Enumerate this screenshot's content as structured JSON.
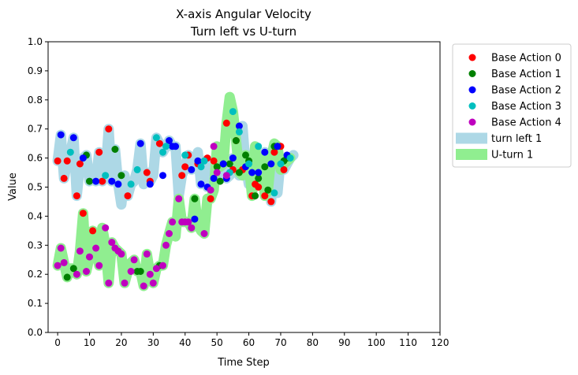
{
  "chart_data": {
    "type": "scatter",
    "title": "X-axis Angular Velocity",
    "subtitle": "Turn left vs U-turn",
    "xlabel": "Time Step",
    "ylabel": "Value",
    "xlim": [
      -3,
      120
    ],
    "ylim": [
      0,
      1.0
    ],
    "xticks": [
      0,
      10,
      20,
      30,
      40,
      50,
      60,
      70,
      80,
      90,
      100,
      110,
      120
    ],
    "yticks": [
      0.0,
      0.1,
      0.2,
      0.3,
      0.4,
      0.5,
      0.6,
      0.7,
      0.8,
      0.9,
      1.0
    ],
    "grid": false,
    "legend_position": "outside-top-right",
    "bands": [
      {
        "name": "turn left 1",
        "color": "#add8e6",
        "x": [
          0,
          1,
          2,
          3,
          4,
          5,
          6,
          7,
          8,
          9,
          10,
          11,
          12,
          13,
          14,
          15,
          16,
          17,
          18,
          19,
          20,
          21,
          22,
          23,
          24,
          25,
          26,
          27,
          28,
          29,
          30,
          31,
          32,
          33,
          34,
          35,
          36,
          37,
          38,
          39,
          40,
          41,
          42,
          43,
          44,
          45,
          46,
          47,
          48,
          49,
          50,
          51,
          52,
          53,
          54,
          55,
          56,
          57,
          58,
          59,
          60,
          61,
          62,
          63,
          64,
          65,
          66,
          67,
          68,
          69,
          70,
          71,
          72,
          73,
          74
        ],
        "y": [
          0.59,
          0.68,
          0.53,
          0.59,
          0.62,
          0.67,
          0.47,
          0.58,
          0.6,
          0.61,
          0.52,
          0.53,
          0.52,
          0.62,
          0.52,
          0.54,
          0.7,
          0.52,
          0.63,
          0.51,
          0.44,
          0.54,
          0.47,
          0.51,
          0.52,
          0.56,
          0.65,
          0.51,
          0.55,
          0.52,
          0.54,
          0.67,
          0.65,
          0.62,
          0.64,
          0.66,
          0.64,
          0.64,
          0.47,
          0.54,
          0.57,
          0.61,
          0.56,
          0.58,
          0.62,
          0.51,
          0.59,
          0.5,
          0.57,
          0.59,
          0.55,
          0.53,
          0.58,
          0.53,
          0.54,
          0.6,
          0.56,
          0.54,
          0.71,
          0.57,
          0.51,
          0.55,
          0.64,
          0.51,
          0.58,
          0.62,
          0.58,
          0.45,
          0.62,
          0.48,
          0.6,
          0.56,
          0.58,
          0.6,
          0.61
        ]
      },
      {
        "name": "U-turn 1",
        "color": "#90ee90",
        "x": [
          0,
          1,
          2,
          3,
          4,
          5,
          6,
          7,
          8,
          9,
          10,
          11,
          12,
          13,
          14,
          15,
          16,
          17,
          18,
          19,
          20,
          21,
          22,
          23,
          24,
          25,
          26,
          27,
          28,
          29,
          30,
          31,
          32,
          33,
          34,
          35,
          36,
          37,
          38,
          39,
          40,
          41,
          42,
          43,
          44,
          45,
          46,
          47,
          48,
          49,
          50,
          51,
          52,
          53,
          54,
          55,
          56,
          57,
          58,
          59,
          60,
          61,
          62,
          63,
          64,
          65,
          66,
          67,
          68,
          69,
          70,
          71,
          72,
          73
        ],
        "y": [
          0.23,
          0.29,
          0.24,
          0.19,
          0.22,
          0.22,
          0.2,
          0.28,
          0.41,
          0.21,
          0.26,
          0.35,
          0.29,
          0.23,
          0.36,
          0.3,
          0.17,
          0.31,
          0.29,
          0.28,
          0.27,
          0.17,
          0.21,
          0.24,
          0.25,
          0.21,
          0.21,
          0.16,
          0.27,
          0.2,
          0.17,
          0.22,
          0.23,
          0.23,
          0.3,
          0.34,
          0.38,
          0.33,
          0.46,
          0.38,
          0.38,
          0.38,
          0.36,
          0.46,
          0.37,
          0.35,
          0.34,
          0.46,
          0.46,
          0.49,
          0.64,
          0.57,
          0.58,
          0.72,
          0.81,
          0.76,
          0.66,
          0.55,
          0.54,
          0.61,
          0.58,
          0.47,
          0.64,
          0.53,
          0.6,
          0.47,
          0.49,
          0.6,
          0.65,
          0.64,
          0.56,
          0.58,
          0.59,
          0.6
        ]
      }
    ],
    "series": [
      {
        "name": "Base Action 0",
        "color": "#ff0000",
        "x": [
          0,
          2,
          3,
          6,
          7,
          8,
          11,
          13,
          14,
          16,
          22,
          28,
          29,
          32,
          39,
          41,
          44,
          47,
          49,
          53,
          55,
          56,
          58,
          61,
          62,
          63,
          65,
          67,
          68,
          70,
          71,
          40,
          48
        ],
        "y": [
          0.59,
          0.53,
          0.59,
          0.47,
          0.58,
          0.41,
          0.35,
          0.62,
          0.52,
          0.7,
          0.47,
          0.55,
          0.52,
          0.65,
          0.54,
          0.61,
          0.58,
          0.6,
          0.59,
          0.72,
          0.56,
          0.66,
          0.56,
          0.47,
          0.51,
          0.5,
          0.47,
          0.45,
          0.62,
          0.64,
          0.56,
          0.57,
          0.46
        ]
      },
      {
        "name": "Base Action 1",
        "color": "#008000",
        "x": [
          3,
          5,
          9,
          10,
          18,
          20,
          25,
          26,
          32,
          43,
          50,
          51,
          52,
          54,
          56,
          57,
          59,
          60,
          62,
          63,
          65,
          66,
          68,
          69,
          71,
          72
        ],
        "y": [
          0.19,
          0.22,
          0.61,
          0.52,
          0.63,
          0.54,
          0.21,
          0.21,
          0.23,
          0.46,
          0.57,
          0.52,
          0.58,
          0.58,
          0.66,
          0.55,
          0.61,
          0.59,
          0.47,
          0.53,
          0.57,
          0.49,
          0.64,
          0.64,
          0.59,
          0.6
        ]
      },
      {
        "name": "Base Action 2",
        "color": "#0000ff",
        "x": [
          1,
          5,
          8,
          12,
          17,
          19,
          26,
          29,
          33,
          35,
          36,
          37,
          42,
          43,
          44,
          45,
          47,
          49,
          52,
          53,
          55,
          57,
          59,
          61,
          63,
          65,
          67,
          69,
          72
        ],
        "y": [
          0.68,
          0.67,
          0.6,
          0.52,
          0.52,
          0.51,
          0.65,
          0.51,
          0.54,
          0.66,
          0.64,
          0.64,
          0.56,
          0.39,
          0.59,
          0.51,
          0.5,
          0.53,
          0.58,
          0.53,
          0.6,
          0.71,
          0.57,
          0.55,
          0.55,
          0.62,
          0.58,
          0.64,
          0.61
        ]
      },
      {
        "name": "Base Action 3",
        "color": "#00bfbf",
        "x": [
          4,
          15,
          23,
          25,
          31,
          33,
          34,
          40,
          45,
          46,
          54,
          55,
          57,
          60,
          63,
          68,
          70,
          73
        ],
        "y": [
          0.62,
          0.54,
          0.51,
          0.56,
          0.67,
          0.62,
          0.64,
          0.61,
          0.57,
          0.59,
          0.55,
          0.76,
          0.69,
          0.58,
          0.64,
          0.48,
          0.58,
          0.6
        ]
      },
      {
        "name": "Base Action 4",
        "color": "#bf00bf",
        "x": [
          0,
          1,
          2,
          6,
          7,
          9,
          10,
          12,
          13,
          15,
          16,
          17,
          18,
          19,
          20,
          21,
          23,
          24,
          27,
          28,
          29,
          30,
          31,
          33,
          34,
          35,
          36,
          38,
          39,
          40,
          41,
          42,
          46,
          48,
          49,
          50,
          53
        ],
        "y": [
          0.23,
          0.29,
          0.24,
          0.2,
          0.28,
          0.21,
          0.26,
          0.29,
          0.23,
          0.36,
          0.17,
          0.31,
          0.29,
          0.28,
          0.27,
          0.17,
          0.21,
          0.25,
          0.16,
          0.27,
          0.2,
          0.17,
          0.22,
          0.23,
          0.3,
          0.34,
          0.38,
          0.46,
          0.38,
          0.38,
          0.38,
          0.36,
          0.34,
          0.49,
          0.64,
          0.55,
          0.54
        ]
      }
    ]
  }
}
